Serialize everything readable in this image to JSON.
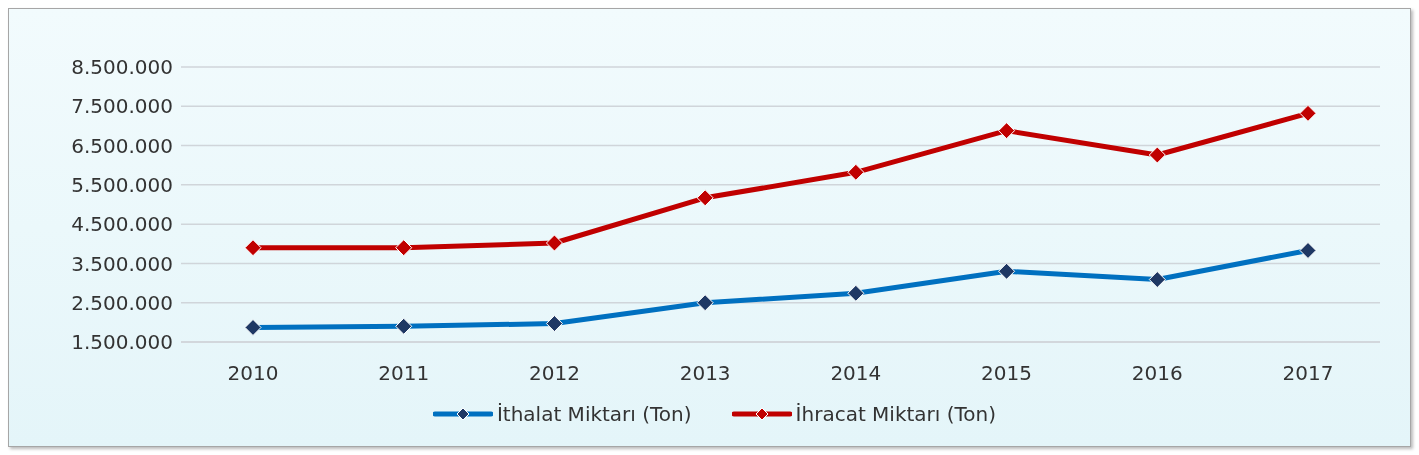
{
  "chart_data": {
    "type": "line",
    "categories": [
      "2010",
      "2011",
      "2012",
      "2013",
      "2014",
      "2015",
      "2016",
      "2017"
    ],
    "series": [
      {
        "name": "İthalat Miktarı (Ton)",
        "color": "#0070c0",
        "values": [
          1870000,
          1900000,
          1970000,
          2500000,
          2740000,
          3300000,
          3090000,
          3830000
        ]
      },
      {
        "name": "İhracat Miktarı (Ton)",
        "color": "#c00000",
        "values": [
          3900000,
          3900000,
          4020000,
          5170000,
          5820000,
          6880000,
          6260000,
          7320000
        ]
      }
    ],
    "ylim": [
      1500000,
      8500000
    ],
    "yticks": [
      {
        "value": 1500000,
        "label": "1.500.000"
      },
      {
        "value": 2500000,
        "label": "2.500.000"
      },
      {
        "value": 3500000,
        "label": "3.500.000"
      },
      {
        "value": 4500000,
        "label": "4.500.000"
      },
      {
        "value": 5500000,
        "label": "5.500.000"
      },
      {
        "value": 6500000,
        "label": "6.500.000"
      },
      {
        "value": 7500000,
        "label": "7.500.000"
      },
      {
        "value": 8500000,
        "label": "8.500.000"
      }
    ],
    "grid": "y",
    "legend": "bottom",
    "marker": "diamond",
    "line_style": "solid"
  }
}
